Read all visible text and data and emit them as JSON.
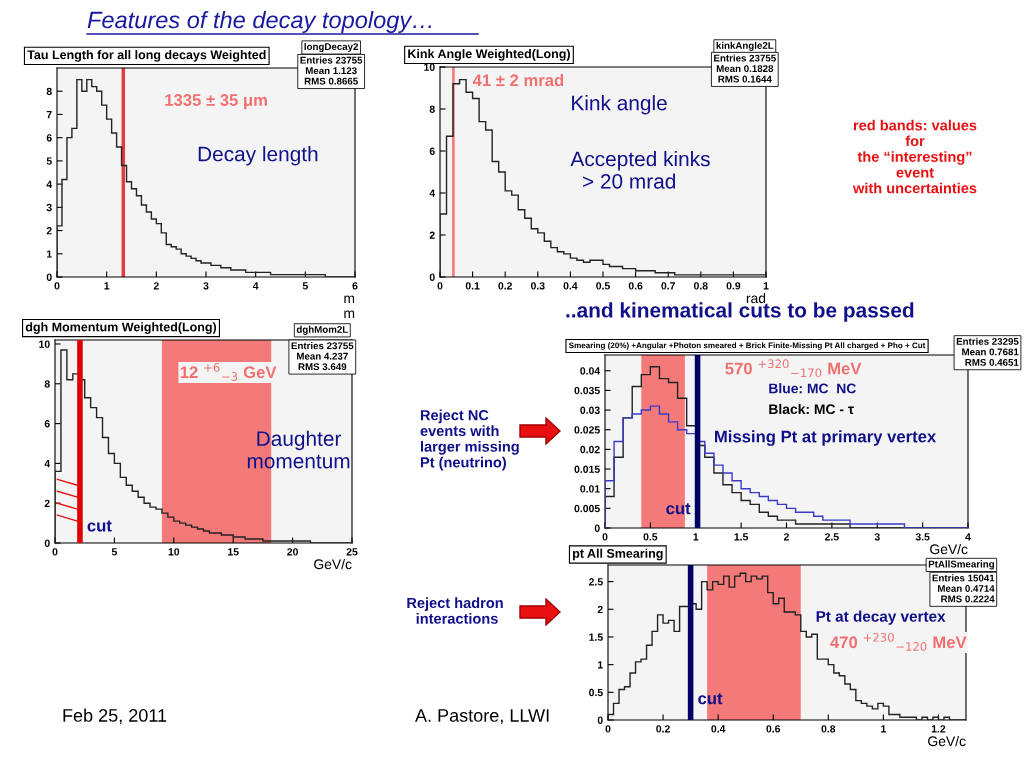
{
  "chart_data": [
    {
      "type": "histogram",
      "title": "Tau Length for all long decays Weighted",
      "xlabel": "m\nm",
      "bins": [
        0,
        0.1,
        0.2,
        0.3,
        0.4,
        0.5,
        0.6,
        0.7,
        0.8,
        0.9,
        1.0,
        1.1,
        1.2,
        1.3,
        1.4,
        1.5,
        1.6,
        1.7,
        1.8,
        1.9,
        2.0,
        2.1,
        2.2,
        2.3,
        2.4,
        2.5,
        2.6,
        2.7,
        2.8,
        2.9,
        3.0,
        3.1,
        3.2,
        3.3,
        3.4,
        3.5,
        3.6,
        3.7,
        3.8,
        3.9,
        4.0,
        4.1,
        4.2,
        4.3,
        4.4,
        4.5,
        4.6,
        4.7,
        4.8,
        4.9,
        5.0,
        5.1,
        5.2,
        5.3,
        5.4,
        5.5,
        5.6,
        5.7,
        5.8,
        5.9,
        6.0
      ],
      "values": [
        2.2,
        4.2,
        6.0,
        6.4,
        8.5,
        8.0,
        8.5,
        8.2,
        8.0,
        7.4,
        6.8,
        6.2,
        5.6,
        4.8,
        4.1,
        3.8,
        3.5,
        3.1,
        2.8,
        2.5,
        2.3,
        1.9,
        1.4,
        1.3,
        1.2,
        1.0,
        0.9,
        0.8,
        0.7,
        0.6,
        0.6,
        0.5,
        0.5,
        0.4,
        0.4,
        0.3,
        0.3,
        0.3,
        0.2,
        0.2,
        0.2,
        0.2,
        0.2,
        0.1,
        0.1,
        0.1,
        0.1,
        0.1,
        0.1,
        0.1,
        0.1,
        0.1,
        0.1,
        0.1,
        0.0,
        0.0,
        0.0,
        0.0,
        0.0,
        0.0
      ],
      "color": "#222222",
      "xlim": [
        0,
        6
      ],
      "xticks": [
        0,
        1,
        2,
        3,
        4,
        5,
        6
      ],
      "ylim": [
        0,
        9
      ],
      "yticks": [
        0,
        1,
        2,
        3,
        4,
        5,
        6,
        7,
        8
      ],
      "bands": [
        {
          "axis": "x",
          "from": 1.3,
          "to": 1.37,
          "label": "1335 ± 35 μm",
          "color": "#e83a3a"
        }
      ],
      "annotations": [
        "Decay length",
        "longDecay2",
        "Entries 23755\nMean 1.123\nRMS 0.8665"
      ]
    },
    {
      "type": "histogram",
      "title": "Kink Angle Weighted(Long)",
      "xlabel": "rad",
      "bins": [
        0,
        0.02,
        0.04,
        0.06,
        0.08,
        0.1,
        0.12,
        0.14,
        0.16,
        0.18,
        0.2,
        0.22,
        0.24,
        0.26,
        0.28,
        0.3,
        0.32,
        0.34,
        0.36,
        0.38,
        0.4,
        0.42,
        0.44,
        0.46,
        0.48,
        0.5,
        0.52,
        0.54,
        0.56,
        0.58,
        0.6,
        0.62,
        0.64,
        0.66,
        0.68,
        0.7,
        0.72,
        0.74,
        0.76,
        0.78,
        0.8,
        0.82,
        0.84,
        0.86,
        0.88,
        0.9,
        0.92,
        0.94,
        0.96,
        0.98,
        1.0
      ],
      "values": [
        3.0,
        6.7,
        9.2,
        9.4,
        8.8,
        8.5,
        7.4,
        7.0,
        5.5,
        5.0,
        4.1,
        3.9,
        3.2,
        2.8,
        2.3,
        2.1,
        1.7,
        1.4,
        1.2,
        1.1,
        0.9,
        0.8,
        0.7,
        0.8,
        0.8,
        0.6,
        0.5,
        0.5,
        0.4,
        0.4,
        0.3,
        0.3,
        0.3,
        0.2,
        0.2,
        0.2,
        0.1,
        0.1,
        0.1,
        0.1,
        0.1,
        0.1,
        0.1,
        0.1,
        0.1,
        0.1,
        0.1,
        0.1,
        0.1,
        0.1
      ],
      "color": "#222222",
      "xlim": [
        0,
        1
      ],
      "xticks": [
        0,
        0.1,
        0.2,
        0.3,
        0.4,
        0.5,
        0.6,
        0.7,
        0.8,
        0.9,
        1
      ],
      "ylim": [
        0,
        10
      ],
      "yticks": [
        0,
        2,
        4,
        6,
        8,
        10
      ],
      "bands": [
        {
          "axis": "x",
          "from": 0.037,
          "to": 0.045,
          "label": "41 ± 2 mrad",
          "color": "#f47a7a"
        }
      ],
      "annotations": [
        "Kink angle",
        "Accepted kinks\n  > 20 mrad",
        "kinkAngle2L",
        "Entries 23755\nMean 0.1828\nRMS 0.1644"
      ]
    },
    {
      "type": "histogram",
      "title": "dgh Momentum Weighted(Long)",
      "xlabel": "GeV/c",
      "bins": [
        0,
        0.5,
        1,
        1.5,
        2,
        2.5,
        3,
        3.5,
        4,
        4.5,
        5,
        5.5,
        6,
        6.5,
        7,
        7.5,
        8,
        8.5,
        9,
        9.5,
        10,
        10.5,
        11,
        11.5,
        12,
        12.5,
        13,
        13.5,
        14,
        14.5,
        15,
        15.5,
        16,
        16.5,
        17,
        17.5,
        18,
        18.5,
        19,
        19.5,
        20,
        20.5,
        21,
        21.5,
        22,
        22.5,
        23,
        23.5,
        24,
        24.5,
        25
      ],
      "values": [
        3.6,
        9.7,
        8.2,
        8.5,
        8.2,
        7.3,
        6.8,
        6.3,
        5.3,
        4.5,
        4.0,
        3.3,
        2.9,
        2.6,
        2.3,
        2.0,
        1.8,
        1.7,
        1.5,
        1.3,
        1.1,
        1.0,
        0.9,
        0.8,
        0.7,
        0.6,
        0.5,
        0.5,
        0.4,
        0.4,
        0.3,
        0.3,
        0.2,
        0.2,
        0.2,
        0.1,
        0.1,
        0.1,
        0.1,
        0.1,
        0.1,
        0.1,
        0.1,
        0.0,
        0.0,
        0.0,
        0.0,
        0.0,
        0.0,
        0.0
      ],
      "color": "#222222",
      "xlim": [
        0,
        25
      ],
      "xticks": [
        0,
        5,
        10,
        15,
        20,
        25
      ],
      "ylim": [
        0,
        10.2
      ],
      "yticks": [
        0,
        2,
        4,
        6,
        8,
        10
      ],
      "bands": [
        {
          "axis": "x",
          "from": 9,
          "to": 18.2,
          "label": "12 $^{+6}$$_{−3}$ GeV",
          "color": "#f47a7a"
        }
      ],
      "ref_lines": [
        {
          "axis": "x",
          "value": 2.1,
          "label": "cut",
          "color": "#e00000"
        }
      ],
      "annotations": [
        "Daughter\nmomentum",
        "dghMom2L",
        "Entries 23755\nMean 4.237\nRMS 3.649"
      ]
    },
    {
      "type": "histogram",
      "title": "Smearing (20%) +Angular +Photon smeared + Brick Finite-Missing Pt All charged + Pho + Cut",
      "xlabel": "GeV/c",
      "bins": [
        0,
        0.1,
        0.2,
        0.3,
        0.4,
        0.5,
        0.6,
        0.7,
        0.8,
        0.9,
        1.0,
        1.1,
        1.2,
        1.3,
        1.4,
        1.5,
        1.6,
        1.7,
        1.8,
        1.9,
        2.0,
        2.1,
        2.2,
        2.3,
        2.4,
        2.5,
        2.6,
        2.7,
        2.8,
        2.9,
        3.0,
        3.1,
        3.2,
        3.3,
        3.4,
        3.5,
        3.6,
        3.7,
        3.8,
        3.9,
        4.0
      ],
      "series": [
        {
          "color": "#222222",
          "values": [
            0.008,
            0.018,
            0.028,
            0.036,
            0.039,
            0.041,
            0.038,
            0.037,
            0.033,
            0.026,
            0.021,
            0.018,
            0.014,
            0.011,
            0.009,
            0.007,
            0.006,
            0.004,
            0.003,
            0.002,
            0.002,
            0.001,
            0.001,
            0.001,
            0.001,
            0.001,
            0.001,
            0,
            0,
            0,
            0,
            0,
            0,
            0,
            0,
            0,
            0,
            0,
            0,
            0
          ]
        },
        {
          "color": "#3a3ac8",
          "values": [
            0.012,
            0.022,
            0.028,
            0.029,
            0.03,
            0.031,
            0.029,
            0.027,
            0.025,
            0.024,
            0.022,
            0.019,
            0.016,
            0.014,
            0.012,
            0.01,
            0.009,
            0.008,
            0.007,
            0.006,
            0.005,
            0.004,
            0.004,
            0.003,
            0.002,
            0.002,
            0.002,
            0.001,
            0.001,
            0.001,
            0.001,
            0.001,
            0.001,
            0,
            0,
            0,
            0,
            0,
            0,
            0
          ]
        }
      ],
      "xlim": [
        0,
        4
      ],
      "xticks": [
        0,
        0.5,
        1,
        1.5,
        2,
        2.5,
        3,
        3.5,
        4
      ],
      "ylim": [
        0,
        0.044
      ],
      "yticks": [
        0,
        0.005,
        0.01,
        0.015,
        0.02,
        0.025,
        0.03,
        0.035,
        0.04
      ],
      "bands": [
        {
          "axis": "x",
          "from": 0.4,
          "to": 0.88,
          "label": "570 $^{+320}$$_{−170}$ MeV",
          "color": "#f47a7a"
        }
      ],
      "ref_lines": [
        {
          "axis": "x",
          "value": 1.02,
          "label": "cut",
          "color": "#000066"
        }
      ],
      "annotations": [
        "Blue: MC  NC",
        "Black: MC - τ",
        "Missing Pt at primary vertex",
        "Entries 23295\nMean 0.7681\nRMS 0.4651"
      ]
    },
    {
      "type": "histogram",
      "title": "pt All Smearing",
      "xlabel": "GeV/c",
      "bins": [
        0,
        0.02,
        0.04,
        0.06,
        0.08,
        0.1,
        0.12,
        0.14,
        0.16,
        0.18,
        0.2,
        0.22,
        0.24,
        0.26,
        0.28,
        0.3,
        0.32,
        0.34,
        0.36,
        0.38,
        0.4,
        0.42,
        0.44,
        0.46,
        0.48,
        0.5,
        0.52,
        0.54,
        0.56,
        0.58,
        0.6,
        0.62,
        0.64,
        0.66,
        0.68,
        0.7,
        0.72,
        0.74,
        0.76,
        0.78,
        0.8,
        0.82,
        0.84,
        0.86,
        0.88,
        0.9,
        0.92,
        0.94,
        0.96,
        0.98,
        1.0,
        1.02,
        1.04,
        1.06,
        1.08,
        1.1,
        1.12,
        1.14,
        1.16,
        1.18,
        1.2,
        1.22,
        1.24,
        1.26,
        1.28,
        1.3
      ],
      "values": [
        0.1,
        0.3,
        0.55,
        0.6,
        0.85,
        1.05,
        1.1,
        1.35,
        1.6,
        1.9,
        1.75,
        1.8,
        1.6,
        2.05,
        2.05,
        2.1,
        2.0,
        2.5,
        2.35,
        2.5,
        2.45,
        2.6,
        2.4,
        2.6,
        2.65,
        2.5,
        2.6,
        2.55,
        2.6,
        2.3,
        2.1,
        2.2,
        1.95,
        1.95,
        1.9,
        1.6,
        1.5,
        1.55,
        1.1,
        1.1,
        1.0,
        0.85,
        0.8,
        0.65,
        0.55,
        0.35,
        0.3,
        0.25,
        0.2,
        0.3,
        0.25,
        0.1,
        0.1,
        0.05,
        0.05,
        0.05,
        0.0,
        0.05,
        0.0,
        0.05,
        0.0,
        0.05,
        0.0,
        0.0,
        0.0
      ],
      "color": "#222222",
      "xlim": [
        0,
        1.3
      ],
      "xticks": [
        0,
        0.2,
        0.4,
        0.6,
        0.8,
        1,
        1.2
      ],
      "ylim": [
        0,
        2.8
      ],
      "yticks": [
        0,
        0.5,
        1,
        1.5,
        2,
        2.5
      ],
      "bands": [
        {
          "axis": "x",
          "from": 0.36,
          "to": 0.7,
          "label": "470 $^{+230}$$_{−120}$ MeV",
          "color": "#f47a7a"
        }
      ],
      "ref_lines": [
        {
          "axis": "x",
          "value": 0.3,
          "label": "cut",
          "color": "#000066"
        }
      ],
      "annotations": [
        "Pt at decay vertex",
        "PtAllSmearing",
        "Entries 15041\nMean 0.4714\nRMS 0.2224"
      ]
    },
    {
      "type": "other",
      "title": "Features of the decay topology…",
      "annotations": [
        "..and kinematical cuts to be passed",
        "red bands: values\nfor\nthe “interesting”\nevent\nwith uncertainties",
        "Reject NC\nevents with\nlarger missing\nPt (neutrino)",
        "Reject hadron\n interactions",
        "Feb 25, 2011",
        "A. Pastore, LLWI"
      ]
    }
  ]
}
